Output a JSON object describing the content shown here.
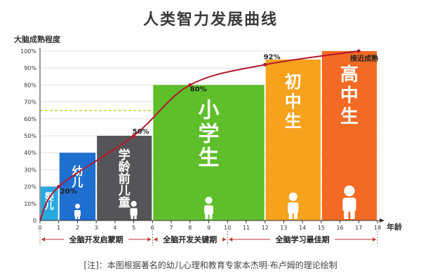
{
  "chart_data": {
    "type": "bar",
    "title": "人类智力发展曲线",
    "ylabel": "大脑成熟程度",
    "xlabel": "年龄",
    "ylim": [
      0,
      100
    ],
    "xlim": [
      0,
      18
    ],
    "yticks": [
      "0",
      "10%",
      "20%",
      "30%",
      "40%",
      "50%",
      "60%",
      "70%",
      "80%",
      "90%",
      "100%"
    ],
    "xticks": [
      "0",
      "1",
      "2",
      "3",
      "4",
      "5",
      "6",
      "7",
      "8",
      "9",
      "10",
      "11",
      "12",
      "13",
      "14",
      "15",
      "16",
      "17",
      "18"
    ],
    "stages": [
      {
        "label": "婴儿",
        "x0": 0,
        "x1": 1,
        "value": 20,
        "color": "#29a8df"
      },
      {
        "label": "幼儿",
        "x0": 1,
        "x1": 3,
        "value": 40,
        "color": "#1f6fd0"
      },
      {
        "label": "学龄前儿童",
        "x0": 3,
        "x1": 6,
        "value": 50,
        "color": "#555557"
      },
      {
        "label": "小学生",
        "x0": 6,
        "x1": 12,
        "value": 80,
        "color": "#5fbf2a"
      },
      {
        "label": "初中生",
        "x0": 12,
        "x1": 15,
        "value": 95,
        "color": "#f6a21c"
      },
      {
        "label": "高中生",
        "x0": 15,
        "x1": 18,
        "value": 100,
        "color": "#f26a24"
      }
    ],
    "curve": {
      "color": "#b3182d",
      "points": [
        [
          0,
          0
        ],
        [
          1,
          20
        ],
        [
          5,
          50
        ],
        [
          8,
          80
        ],
        [
          12,
          92
        ],
        [
          17,
          100
        ]
      ]
    },
    "annotations": [
      {
        "text": "20%",
        "x": 1,
        "y": 20
      },
      {
        "text": "50%",
        "x": 5,
        "y": 50
      },
      {
        "text": "80%",
        "x": 8,
        "y": 80
      },
      {
        "text": "92%",
        "x": 12,
        "y": 92
      },
      {
        "text": "接近成熟",
        "x": 17,
        "y": 100
      }
    ],
    "reference_line": {
      "y": 65,
      "x_end": 6,
      "color": "#bdd82f"
    },
    "periods": [
      {
        "label": "全脑开发启蒙期",
        "x0": 0,
        "x1": 6
      },
      {
        "label": "全脑开发关键期",
        "x0": 6,
        "x1": 10
      },
      {
        "label": "全脑学习最佳期",
        "x0": 10,
        "x1": 18
      }
    ],
    "grid": true
  },
  "footnote": "[注]：本图根据著名的幼儿心理和教育专家本杰明·布卢姆的理论绘制"
}
